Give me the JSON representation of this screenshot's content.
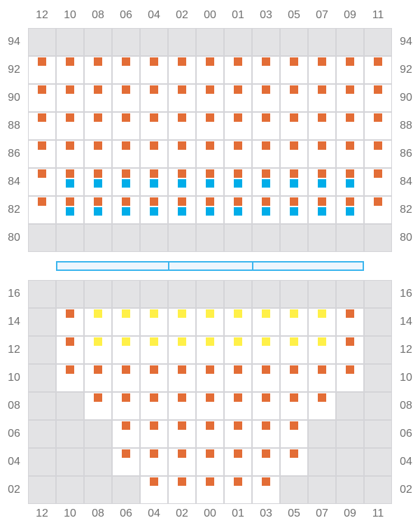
{
  "columns": [
    "12",
    "10",
    "08",
    "06",
    "04",
    "02",
    "00",
    "01",
    "03",
    "05",
    "07",
    "09",
    "11"
  ],
  "colors": {
    "orange": "#e36d36",
    "blue": "#00ade9",
    "yellow": "#fff048",
    "unavailable": "#e3e3e5",
    "grid": "#d4d4d8",
    "stage_border": "#3bb5ee"
  },
  "legend_codes": {
    "x": "unavailable",
    "o": "orange seat",
    "ob": "orange and blue seats",
    "y": "yellow seat",
    "": "empty"
  },
  "upper_section": {
    "rows": [
      {
        "label": "94",
        "cells": [
          "x",
          "x",
          "x",
          "x",
          "x",
          "x",
          "x",
          "x",
          "x",
          "x",
          "x",
          "x",
          "x"
        ]
      },
      {
        "label": "92",
        "cells": [
          "o",
          "o",
          "o",
          "o",
          "o",
          "o",
          "o",
          "o",
          "o",
          "o",
          "o",
          "o",
          "o"
        ]
      },
      {
        "label": "90",
        "cells": [
          "o",
          "o",
          "o",
          "o",
          "o",
          "o",
          "o",
          "o",
          "o",
          "o",
          "o",
          "o",
          "o"
        ]
      },
      {
        "label": "88",
        "cells": [
          "o",
          "o",
          "o",
          "o",
          "o",
          "o",
          "o",
          "o",
          "o",
          "o",
          "o",
          "o",
          "o"
        ]
      },
      {
        "label": "86",
        "cells": [
          "o",
          "o",
          "o",
          "o",
          "o",
          "o",
          "o",
          "o",
          "o",
          "o",
          "o",
          "o",
          "o"
        ]
      },
      {
        "label": "84",
        "cells": [
          "o",
          "ob",
          "ob",
          "ob",
          "ob",
          "ob",
          "ob",
          "ob",
          "ob",
          "ob",
          "ob",
          "ob",
          "o"
        ]
      },
      {
        "label": "82",
        "cells": [
          "o",
          "ob",
          "ob",
          "ob",
          "ob",
          "ob",
          "ob",
          "ob",
          "ob",
          "ob",
          "ob",
          "ob",
          "o"
        ]
      },
      {
        "label": "80",
        "cells": [
          "x",
          "x",
          "x",
          "x",
          "x",
          "x",
          "x",
          "x",
          "x",
          "x",
          "x",
          "x",
          "x"
        ]
      }
    ]
  },
  "lower_section": {
    "rows": [
      {
        "label": "16",
        "cells": [
          "x",
          "x",
          "x",
          "x",
          "x",
          "x",
          "x",
          "x",
          "x",
          "x",
          "x",
          "x",
          "x"
        ]
      },
      {
        "label": "14",
        "cells": [
          "x",
          "o",
          "y",
          "y",
          "y",
          "y",
          "y",
          "y",
          "y",
          "y",
          "y",
          "o",
          "x"
        ]
      },
      {
        "label": "12",
        "cells": [
          "x",
          "o",
          "y",
          "y",
          "y",
          "y",
          "y",
          "y",
          "y",
          "y",
          "y",
          "o",
          "x"
        ]
      },
      {
        "label": "10",
        "cells": [
          "x",
          "o",
          "o",
          "o",
          "o",
          "o",
          "o",
          "o",
          "o",
          "o",
          "o",
          "o",
          "x"
        ]
      },
      {
        "label": "08",
        "cells": [
          "x",
          "x",
          "o",
          "o",
          "o",
          "o",
          "o",
          "o",
          "o",
          "o",
          "o",
          "x",
          "x"
        ]
      },
      {
        "label": "06",
        "cells": [
          "x",
          "x",
          "x",
          "o",
          "o",
          "o",
          "o",
          "o",
          "o",
          "o",
          "x",
          "x",
          "x"
        ]
      },
      {
        "label": "04",
        "cells": [
          "x",
          "x",
          "x",
          "o",
          "o",
          "o",
          "o",
          "o",
          "o",
          "o",
          "x",
          "x",
          "x"
        ]
      },
      {
        "label": "02",
        "cells": [
          "x",
          "x",
          "x",
          "x",
          "o",
          "o",
          "o",
          "o",
          "o",
          "x",
          "x",
          "x",
          "x"
        ]
      }
    ]
  }
}
